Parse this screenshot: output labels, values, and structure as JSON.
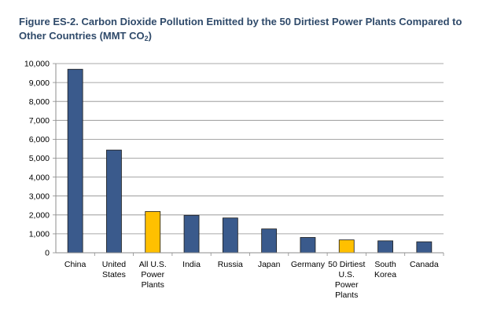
{
  "title": {
    "main": "Figure ES-2. Carbon Dioxide Pollution Emitted by the 50 Dirtiest Power Plants Compared to Other Countries (MMT CO",
    "subscript": "2",
    "close": ")"
  },
  "chart_data": {
    "type": "bar",
    "title": "Figure ES-2. Carbon Dioxide Pollution Emitted by the 50 Dirtiest Power Plants Compared to Other Countries (MMT CO2)",
    "xlabel": "",
    "ylabel": "",
    "ylim": [
      0,
      10000
    ],
    "ytick_step": 1000,
    "ytick_labels": [
      "0",
      "1,000",
      "2,000",
      "3,000",
      "4,000",
      "5,000",
      "6,000",
      "7,000",
      "8,000",
      "9,000",
      "10,000"
    ],
    "categories": [
      [
        "China"
      ],
      [
        "United",
        "States"
      ],
      [
        "All U.S.",
        "Power",
        "Plants"
      ],
      [
        "India"
      ],
      [
        "Russia"
      ],
      [
        "Japan"
      ],
      [
        "Germany"
      ],
      [
        "50 Dirtiest",
        "U.S.",
        "Power",
        "Plants"
      ],
      [
        "South",
        "Korea"
      ],
      [
        "Canada"
      ]
    ],
    "values": [
      9700,
      5430,
      2180,
      1980,
      1840,
      1260,
      810,
      680,
      630,
      580
    ],
    "bar_colors": [
      "#3a5a8c",
      "#3a5a8c",
      "#ffc000",
      "#3a5a8c",
      "#3a5a8c",
      "#3a5a8c",
      "#3a5a8c",
      "#ffc000",
      "#3a5a8c",
      "#3a5a8c"
    ],
    "bar_outline_color": "#1a1a1a",
    "axis_color": "#8c8c8c",
    "grid": true,
    "grid_color": "#8c8c8c",
    "legend": "none"
  }
}
